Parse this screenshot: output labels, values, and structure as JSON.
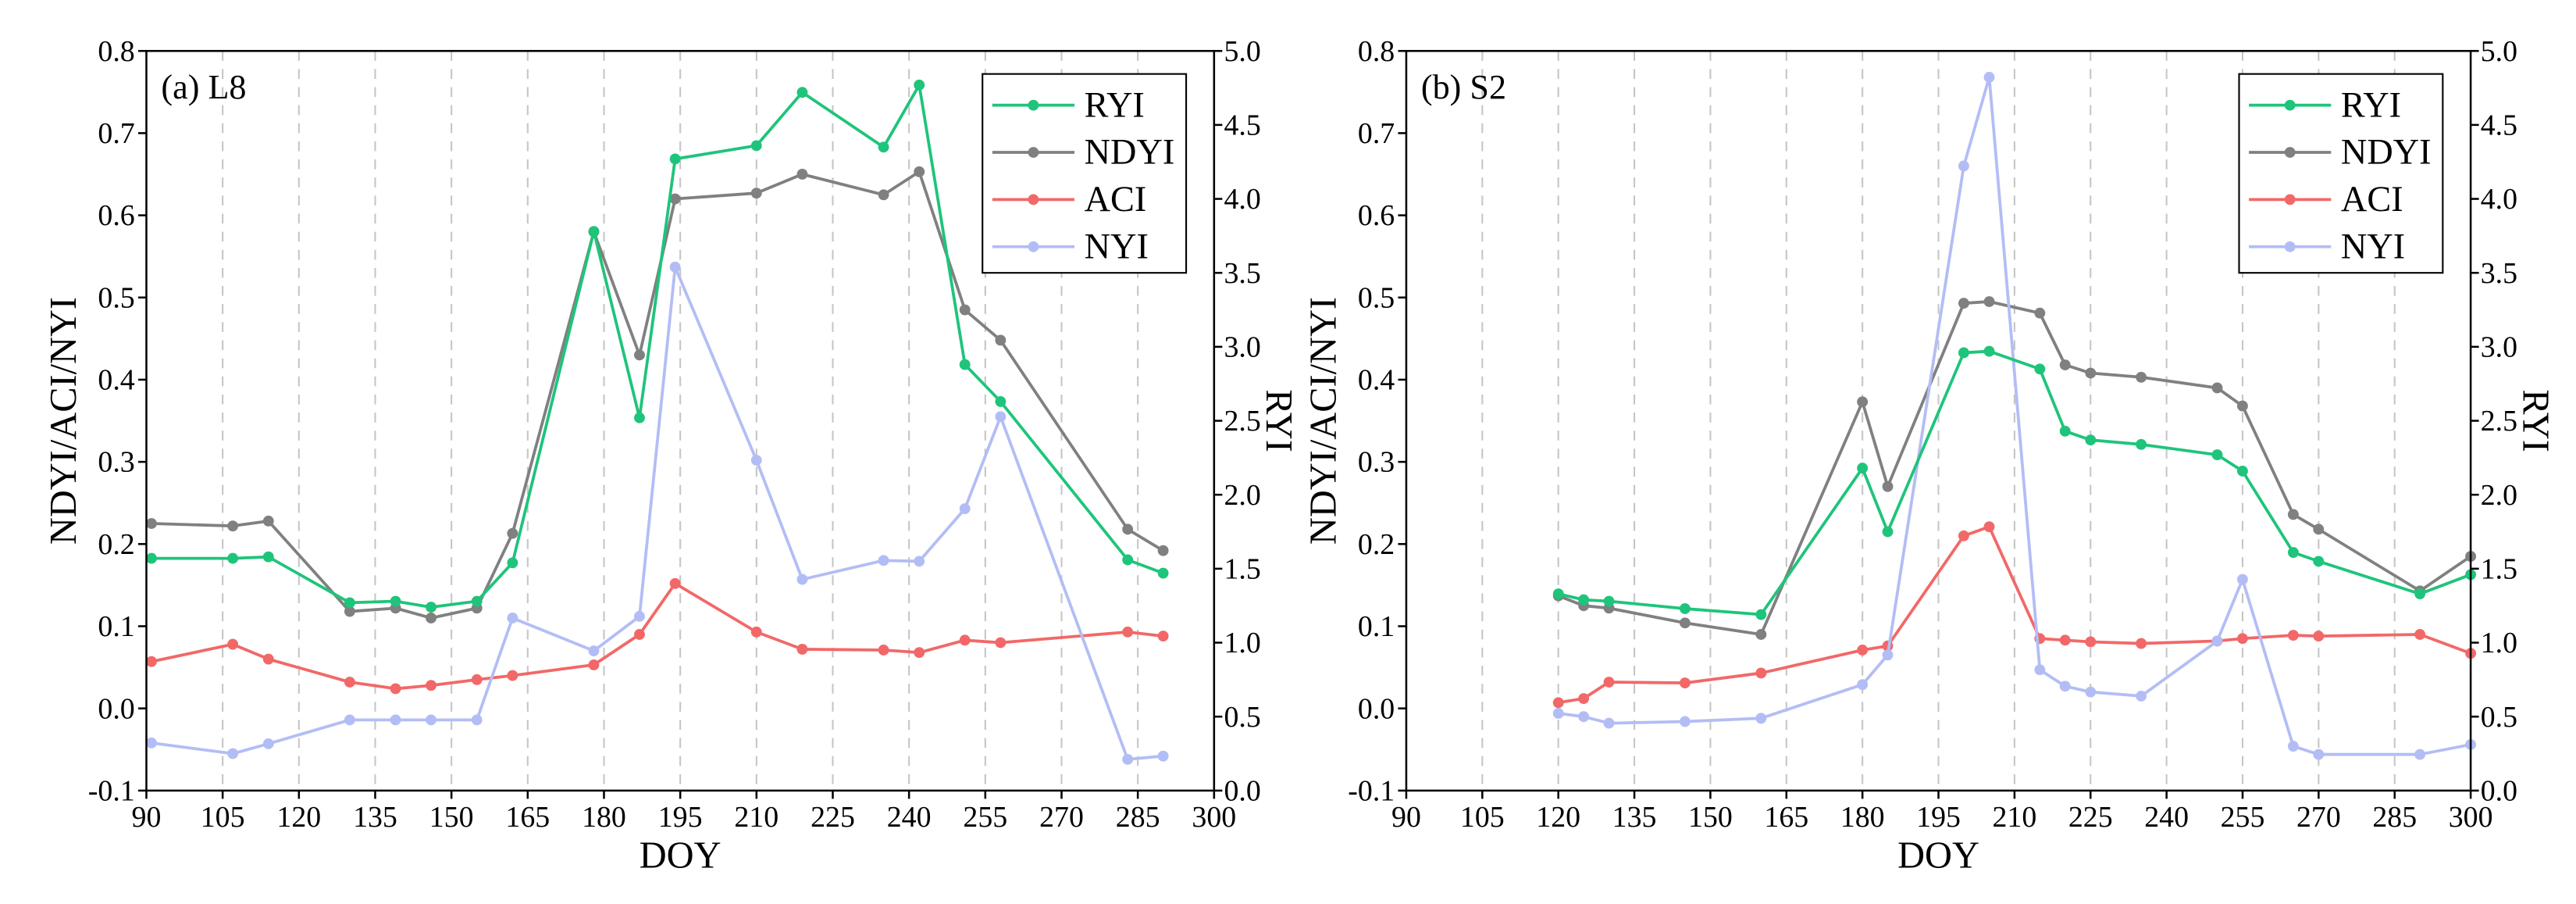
{
  "chart_data": [
    {
      "type": "line",
      "panel_label": "(a) L8",
      "xlabel": "DOY",
      "ylabel": "NDYI/ACI/NYI",
      "y2label": "RYI",
      "xlim": [
        90,
        300
      ],
      "ylim": [
        -0.1,
        0.8
      ],
      "y2lim": [
        0,
        5
      ],
      "x_ticks": [
        "90",
        "105",
        "120",
        "135",
        "150",
        "165",
        "180",
        "195",
        "210",
        "225",
        "240",
        "255",
        "270",
        "285",
        "300"
      ],
      "y_ticks": [
        "0.8",
        "0.7",
        "0.6",
        "0.5",
        "0.4",
        "0.3",
        "0.2",
        "0.1",
        "0.0",
        "-0.1"
      ],
      "y2_ticks": [
        "5.0",
        "4.5",
        "4.0",
        "3.5",
        "3.0",
        "2.5",
        "2.0",
        "1.5",
        "1.0",
        "0.5",
        "0.0"
      ],
      "grid": true,
      "legend_position": "top-right",
      "x": [
        91,
        107,
        114,
        130,
        139,
        146,
        155,
        162,
        178,
        187,
        194,
        210,
        219,
        235,
        242,
        251,
        258,
        283,
        290
      ],
      "series": [
        {
          "name": "RYI",
          "secondary_axis": true,
          "color": "#1fc47b",
          "values": [
            1.57,
            1.57,
            1.58,
            1.27,
            1.28,
            1.24,
            1.28,
            1.54,
            3.78,
            2.52,
            4.27,
            4.36,
            4.72,
            4.35,
            4.77,
            2.88,
            2.63,
            1.56,
            1.47
          ]
        },
        {
          "name": "NDYI",
          "secondary_axis": false,
          "color": "#808080",
          "values": [
            0.225,
            0.222,
            0.228,
            0.118,
            0.122,
            0.11,
            0.122,
            0.213,
            0.58,
            0.43,
            0.62,
            0.627,
            0.65,
            0.625,
            0.653,
            0.485,
            0.448,
            0.218,
            0.192
          ]
        },
        {
          "name": "ACI",
          "secondary_axis": false,
          "color": "#f26868",
          "values": [
            0.057,
            0.078,
            0.06,
            0.032,
            0.024,
            0.028,
            0.035,
            0.04,
            0.053,
            0.09,
            0.152,
            0.093,
            0.072,
            0.071,
            0.068,
            0.083,
            0.08,
            0.093,
            0.088
          ]
        },
        {
          "name": "NYI",
          "secondary_axis": false,
          "color": "#b3bdf5",
          "values": [
            -0.042,
            -0.055,
            -0.043,
            -0.014,
            -0.014,
            -0.014,
            -0.014,
            0.11,
            0.07,
            0.112,
            0.537,
            0.302,
            0.157,
            0.18,
            0.179,
            0.243,
            0.355,
            -0.062,
            -0.058
          ]
        }
      ]
    },
    {
      "type": "line",
      "panel_label": "(b) S2",
      "xlabel": "DOY",
      "ylabel": "NDYI/ACI/NYI",
      "y2label": "RYI",
      "xlim": [
        90,
        300
      ],
      "ylim": [
        -0.1,
        0.8
      ],
      "y2lim": [
        0,
        5
      ],
      "x_ticks": [
        "90",
        "105",
        "120",
        "135",
        "150",
        "165",
        "180",
        "195",
        "210",
        "225",
        "240",
        "255",
        "270",
        "285",
        "300"
      ],
      "y_ticks": [
        "0.8",
        "0.7",
        "0.6",
        "0.5",
        "0.4",
        "0.3",
        "0.2",
        "0.1",
        "0.0",
        "-0.1"
      ],
      "y2_ticks": [
        "5.0",
        "4.5",
        "4.0",
        "3.5",
        "3.0",
        "2.5",
        "2.0",
        "1.5",
        "1.0",
        "0.5",
        "0.0"
      ],
      "grid": true,
      "legend_position": "top-right",
      "x": [
        120,
        125,
        130,
        145,
        160,
        180,
        185,
        200,
        205,
        215,
        220,
        225,
        235,
        250,
        255,
        265,
        270,
        290,
        300
      ],
      "series": [
        {
          "name": "RYI",
          "secondary_axis": true,
          "color": "#1fc47b",
          "values": [
            1.33,
            1.29,
            1.28,
            1.23,
            1.19,
            2.18,
            1.75,
            2.96,
            2.97,
            2.85,
            2.43,
            2.37,
            2.34,
            2.27,
            2.16,
            1.61,
            1.55,
            1.33,
            1.46
          ]
        },
        {
          "name": "NDYI",
          "secondary_axis": false,
          "color": "#808080",
          "values": [
            0.137,
            0.125,
            0.122,
            0.104,
            0.09,
            0.373,
            0.27,
            0.493,
            0.495,
            0.481,
            0.418,
            0.408,
            0.403,
            0.39,
            0.368,
            0.236,
            0.218,
            0.143,
            0.185
          ]
        },
        {
          "name": "ACI",
          "secondary_axis": false,
          "color": "#f26868",
          "values": [
            0.007,
            0.012,
            0.032,
            0.031,
            0.043,
            0.071,
            0.076,
            0.21,
            0.221,
            0.085,
            0.083,
            0.081,
            0.079,
            0.082,
            0.085,
            0.089,
            0.088,
            0.09,
            0.067
          ]
        },
        {
          "name": "NYI",
          "secondary_axis": false,
          "color": "#b3bdf5",
          "values": [
            -0.006,
            -0.01,
            -0.018,
            -0.016,
            -0.012,
            0.029,
            0.065,
            0.66,
            0.768,
            0.047,
            0.027,
            0.02,
            0.015,
            0.082,
            0.157,
            -0.046,
            -0.056,
            -0.056,
            -0.044
          ]
        }
      ]
    }
  ]
}
